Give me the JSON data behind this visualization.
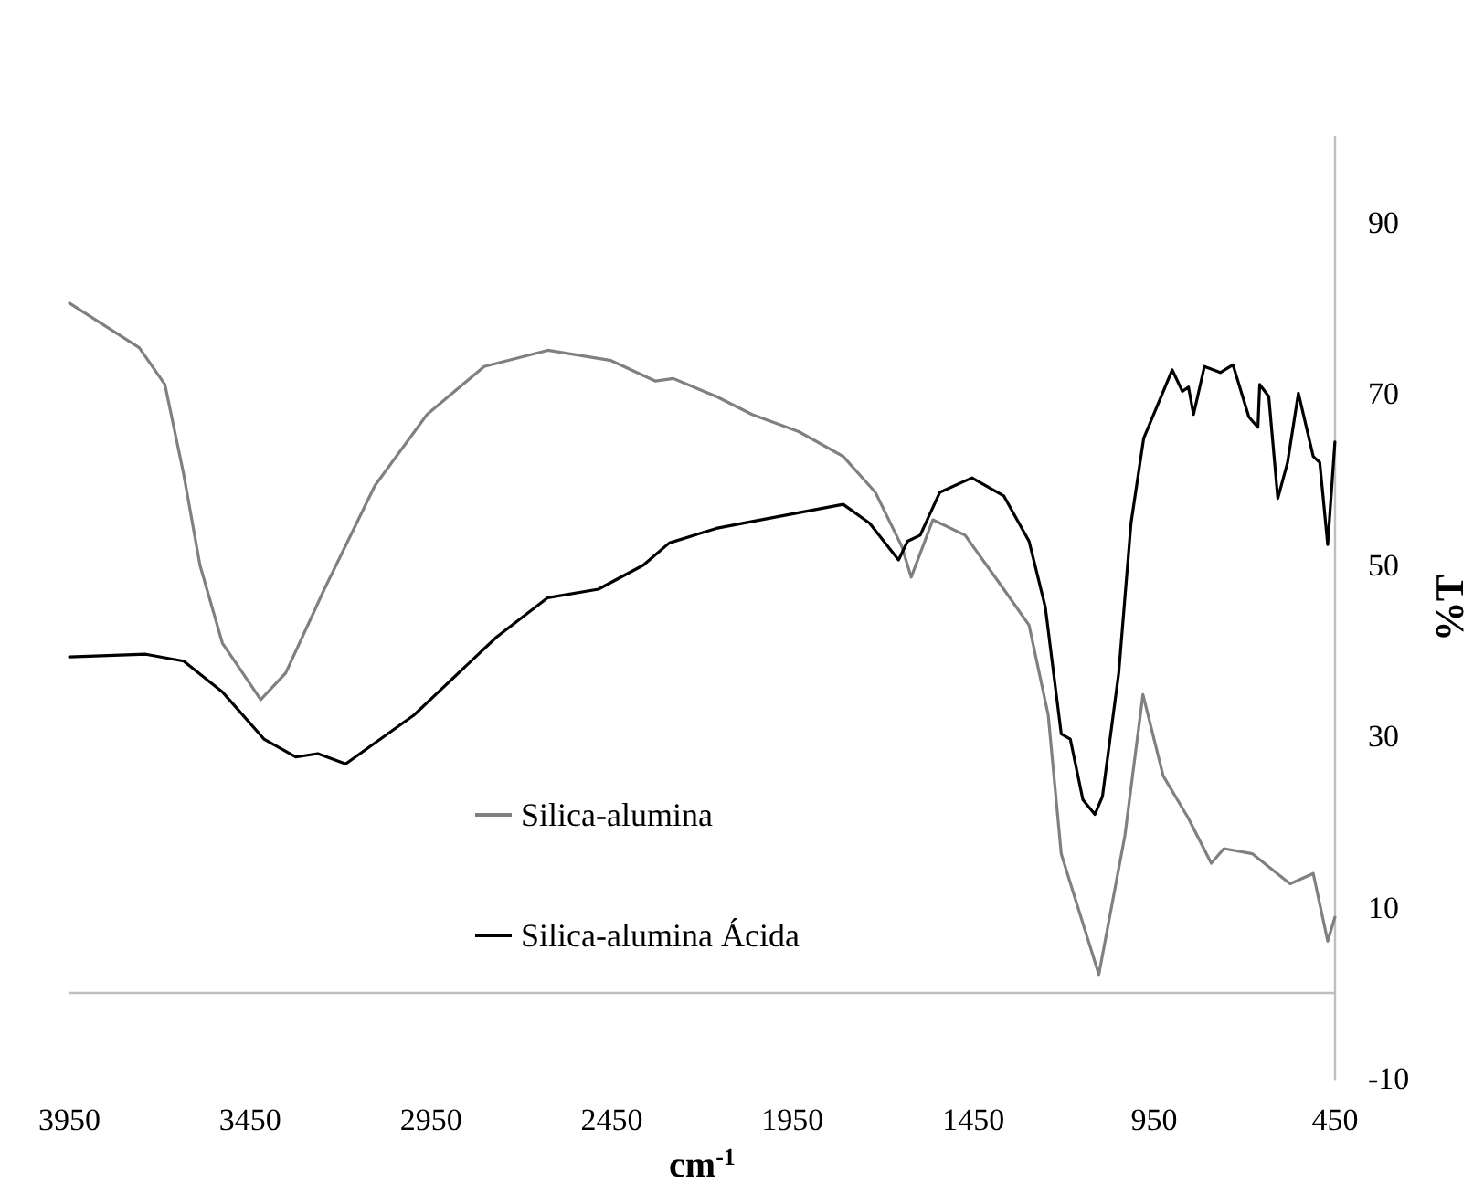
{
  "chart_data": {
    "type": "line",
    "xlabel": "cm$^{-1}$",
    "ylabel": "%T",
    "xlim": [
      3950,
      450
    ],
    "xticks": [
      3950,
      3450,
      2950,
      2450,
      1950,
      1450,
      950,
      450
    ],
    "ylim": [
      -10,
      100
    ],
    "yticks": [
      -10,
      10,
      30,
      50,
      70,
      90
    ],
    "grid": false,
    "legend": "bottom left",
    "marker": "none",
    "line_style": "solid",
    "series": [
      {
        "name": "Silica-alumina",
        "color": "#808080",
        "x": [
          3950,
          3757,
          3686,
          3634,
          3589,
          3527,
          3421,
          3352,
          3245,
          3105,
          2961,
          2803,
          2627,
          2452,
          2329,
          2280,
          2161,
          2062,
          1933,
          1810,
          1721,
          1648,
          1622,
          1562,
          1473,
          1366,
          1296,
          1243,
          1207,
          1103,
          1031,
          981,
          925,
          856,
          792,
          757,
          678,
          574,
          510,
          470,
          450
        ],
        "values": [
          80.6,
          75.4,
          71.1,
          60.6,
          50,
          40.9,
          34.3,
          37.4,
          47.2,
          59.3,
          67.6,
          73.2,
          75.1,
          73.9,
          71.5,
          71.8,
          69.7,
          67.6,
          65.6,
          62.7,
          58.5,
          52.2,
          48.6,
          55.3,
          53.5,
          47.2,
          43,
          32.5,
          16.3,
          2.2,
          18.4,
          34.9,
          25.4,
          20.5,
          15.2,
          16.9,
          16.3,
          12.8,
          14,
          6.1,
          8.9
        ]
      },
      {
        "name": "Silica-alumina Ácida",
        "color": "#000000",
        "x": [
          3950,
          3739,
          3634,
          3527,
          3412,
          3324,
          3263,
          3186,
          2997,
          2769,
          2627,
          2487,
          2363,
          2291,
          2161,
          2062,
          1810,
          1737,
          1657,
          1632,
          1597,
          1543,
          1454,
          1366,
          1296,
          1251,
          1207,
          1182,
          1147,
          1114,
          1093,
          1048,
          1014,
          979,
          900,
          872,
          855,
          841,
          811,
          767,
          732,
          688,
          663,
          658,
          633,
          608,
          581,
          551,
          510,
          492,
          470,
          450
        ],
        "values": [
          39.3,
          39.6,
          38.8,
          35.2,
          29.7,
          27.6,
          28,
          26.8,
          32.5,
          41.6,
          46.2,
          47.2,
          50,
          52.6,
          54.3,
          55.1,
          57.1,
          54.9,
          50.6,
          52.8,
          53.5,
          58.5,
          60.2,
          58.1,
          52.8,
          45.1,
          30.3,
          29.7,
          22.6,
          20.9,
          23,
          37.4,
          54.9,
          64.8,
          72.8,
          70.3,
          70.8,
          67.6,
          73.2,
          72.5,
          73.4,
          67.3,
          66.1,
          71.1,
          69.7,
          57.8,
          62,
          70.1,
          62.7,
          62,
          52.4,
          64.4
        ]
      }
    ]
  }
}
